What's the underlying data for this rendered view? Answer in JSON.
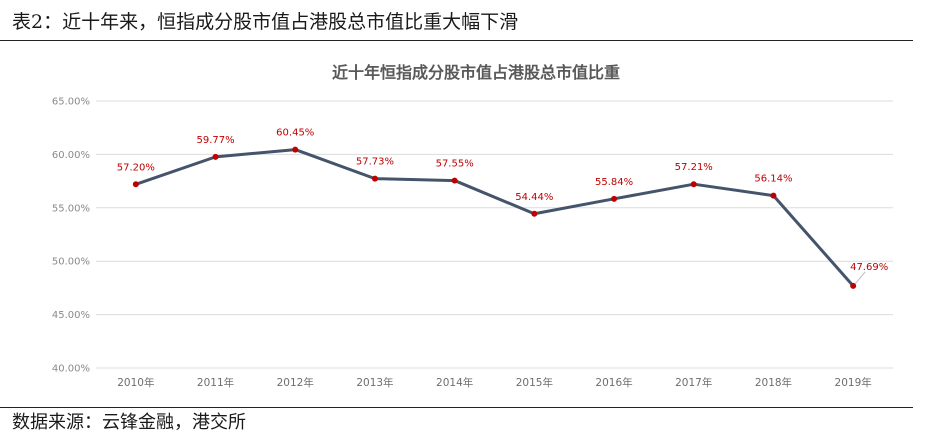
{
  "header": {
    "caption": "表2：近十年来，恒指成分股市值占港股总市值比重大幅下滑"
  },
  "footer": {
    "source": "数据来源：云锋金融，港交所"
  },
  "chart_data": {
    "type": "line",
    "title": "近十年恒指成分股市值占港股总市值比重",
    "xlabel": "",
    "ylabel": "",
    "categories": [
      "2010年",
      "2011年",
      "2012年",
      "2013年",
      "2014年",
      "2015年",
      "2016年",
      "2017年",
      "2018年",
      "2019年"
    ],
    "series": [
      {
        "values": [
          57.2,
          59.77,
          60.45,
          57.73,
          57.55,
          54.44,
          55.84,
          57.21,
          56.14,
          47.69
        ],
        "labels": [
          "57.20%",
          "59.77%",
          "60.45%",
          "57.73%",
          "57.55%",
          "54.44%",
          "55.84%",
          "57.21%",
          "56.14%",
          "47.69%"
        ]
      }
    ],
    "ylim": [
      40,
      65
    ],
    "yticks": [
      "40.00%",
      "45.00%",
      "50.00%",
      "55.00%",
      "60.00%",
      "65.00%"
    ],
    "grid": true,
    "legend": "none",
    "colors": {
      "line": "#44546a",
      "marker": "#c00000",
      "label": "#c00000"
    }
  }
}
